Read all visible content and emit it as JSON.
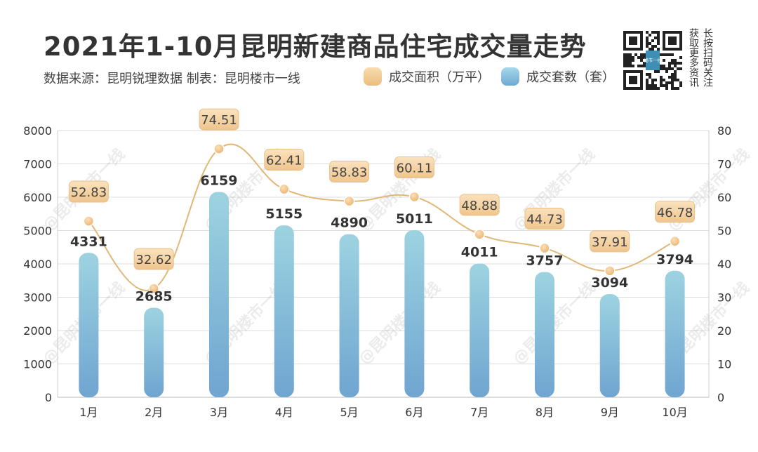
{
  "header": {
    "title": "2021年1-10月昆明新建商品住宅成交量走势",
    "source": "数据来源：昆明锐理数据 制表：昆明楼市一线",
    "qr_text_1": "长按扫码关注",
    "qr_text_2": "获取更多资讯",
    "qr_logo": "楼市一线"
  },
  "watermark": "@昆明楼市一线",
  "colors": {
    "area_line": "#e0b878",
    "area_label_bg": "#f6d6a8",
    "bar_top": "#9dd3e0",
    "bar_bottom": "#6fa5d0",
    "grid": "#dddddd"
  },
  "chart_data": {
    "type": "bar+line",
    "categories": [
      "1月",
      "2月",
      "3月",
      "4月",
      "5月",
      "6月",
      "7月",
      "8月",
      "9月",
      "10月"
    ],
    "series": [
      {
        "name": "成交套数（套）",
        "type": "bar",
        "axis": "left",
        "values": [
          4331,
          2685,
          6159,
          5155,
          4890,
          5011,
          4011,
          3757,
          3094,
          3794
        ]
      },
      {
        "name": "成交面积（万平）",
        "type": "line",
        "axis": "right",
        "smooth": true,
        "values": [
          52.83,
          32.62,
          74.51,
          62.41,
          58.83,
          60.11,
          48.88,
          44.73,
          37.91,
          46.78
        ]
      }
    ],
    "y_left": {
      "range": [
        0,
        8000
      ],
      "ticks": [
        "0",
        "1000",
        "2000",
        "3000",
        "4000",
        "5000",
        "6000",
        "7000",
        "8000"
      ]
    },
    "y_right": {
      "range": [
        0,
        80
      ],
      "ticks": [
        "0",
        "10",
        "20",
        "30",
        "40",
        "50",
        "60",
        "70",
        "80"
      ]
    },
    "grid": true,
    "legend": "top"
  }
}
